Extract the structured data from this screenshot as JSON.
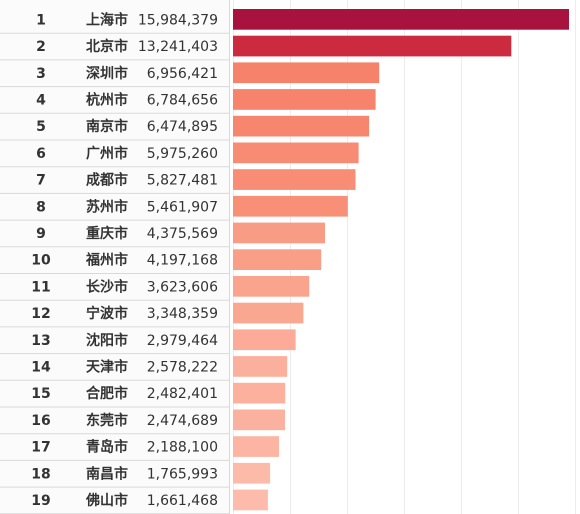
{
  "chart_data": {
    "type": "bar",
    "orientation": "horizontal",
    "grid": true,
    "rows": [
      {
        "rank": "1",
        "city": "上海市",
        "value_label": "15,984,379",
        "value": 15984379,
        "color": "#a8123e"
      },
      {
        "rank": "2",
        "city": "北京市",
        "value_label": "13,241,403",
        "value": 13241403,
        "color": "#cb2a3f"
      },
      {
        "rank": "3",
        "city": "深圳市",
        "value_label": "6,956,421",
        "value": 6956421,
        "color": "#f7826c"
      },
      {
        "rank": "4",
        "city": "杭州市",
        "value_label": "6,784,656",
        "value": 6784656,
        "color": "#f7836d"
      },
      {
        "rank": "5",
        "city": "南京市",
        "value_label": "6,474,895",
        "value": 6474895,
        "color": "#f7866f"
      },
      {
        "rank": "6",
        "city": "广州市",
        "value_label": "5,975,260",
        "value": 5975260,
        "color": "#f88b73"
      },
      {
        "rank": "7",
        "city": "成都市",
        "value_label": "5,827,481",
        "value": 5827481,
        "color": "#f88c74"
      },
      {
        "rank": "8",
        "city": "苏州市",
        "value_label": "5,461,907",
        "value": 5461907,
        "color": "#f89078"
      },
      {
        "rank": "9",
        "city": "重庆市",
        "value_label": "4,375,569",
        "value": 4375569,
        "color": "#f99c85"
      },
      {
        "rank": "10",
        "city": "福州市",
        "value_label": "4,197,168",
        "value": 4197168,
        "color": "#f99e87"
      },
      {
        "rank": "11",
        "city": "长沙市",
        "value_label": "3,623,606",
        "value": 3623606,
        "color": "#faa48e"
      },
      {
        "rank": "12",
        "city": "宁波市",
        "value_label": "3,348,359",
        "value": 3348359,
        "color": "#faa792"
      },
      {
        "rank": "13",
        "city": "沈阳市",
        "value_label": "2,979,464",
        "value": 2979464,
        "color": "#fbab97"
      },
      {
        "rank": "14",
        "city": "天津市",
        "value_label": "2,578,222",
        "value": 2578222,
        "color": "#fbb09d"
      },
      {
        "rank": "15",
        "city": "合肥市",
        "value_label": "2,482,401",
        "value": 2482401,
        "color": "#fbb19e"
      },
      {
        "rank": "16",
        "city": "东莞市",
        "value_label": "2,474,689",
        "value": 2474689,
        "color": "#fbb19f"
      },
      {
        "rank": "17",
        "city": "青岛市",
        "value_label": "2,188,100",
        "value": 2188100,
        "color": "#fcb5a3"
      },
      {
        "rank": "18",
        "city": "南昌市",
        "value_label": "1,765,993",
        "value": 1765993,
        "color": "#fcbaa9"
      },
      {
        "rank": "19",
        "city": "佛山市",
        "value_label": "1,661,468",
        "value": 1661468,
        "color": "#fcbbab"
      }
    ]
  }
}
